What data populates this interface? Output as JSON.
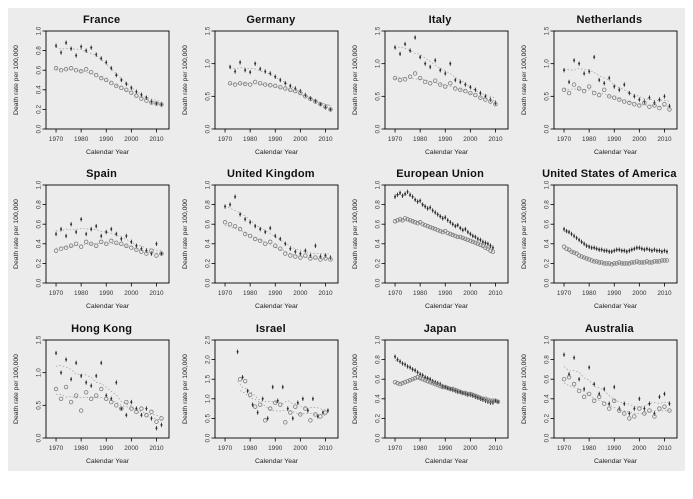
{
  "figure": {
    "background_color": "#ececec",
    "page_color": "#ffffff",
    "xlabel": "Calendar Year",
    "ylabel": "Death rate per 100,000",
    "x_ticks": [
      1970,
      1980,
      1990,
      2000,
      2010
    ],
    "x_range": [
      1966,
      2015
    ],
    "marker_dark_color": "#2a2a2a",
    "marker_open_color": "#7d7d7d",
    "trend_color": "#9a9a9a"
  },
  "chart_data": [
    {
      "type": "scatter",
      "title": "France",
      "xlabel": "Calendar Year",
      "ylabel": "Death rate per 100,000",
      "ylim": [
        0,
        1.0
      ],
      "yticks": [
        0.0,
        0.2,
        0.4,
        0.6,
        0.8,
        1.0
      ],
      "series": [
        {
          "name": "series1",
          "marker": "dot-errorbar",
          "x_start": 1970,
          "x_step": 2,
          "y": [
            0.85,
            0.78,
            0.88,
            0.82,
            0.75,
            0.84,
            0.8,
            0.83,
            0.76,
            0.72,
            0.68,
            0.62,
            0.55,
            0.5,
            0.46,
            0.42,
            0.38,
            0.35,
            0.32,
            0.28,
            0.26,
            0.25
          ]
        },
        {
          "name": "series2",
          "marker": "open-circle",
          "x_start": 1970,
          "x_step": 2,
          "y": [
            0.62,
            0.6,
            0.61,
            0.62,
            0.6,
            0.59,
            0.61,
            0.58,
            0.55,
            0.52,
            0.5,
            0.47,
            0.44,
            0.42,
            0.4,
            0.37,
            0.34,
            0.31,
            0.29,
            0.27,
            0.26,
            0.25
          ]
        }
      ]
    },
    {
      "type": "scatter",
      "title": "Germany",
      "xlabel": "Calendar Year",
      "ylabel": "Death rate per 100,000",
      "ylim": [
        0,
        1.5
      ],
      "yticks": [
        0.0,
        0.5,
        1.0,
        1.5
      ],
      "series": [
        {
          "name": "series1",
          "marker": "dot-errorbar",
          "x_start": 1972,
          "x_step": 2,
          "y": [
            0.95,
            0.88,
            1.02,
            0.9,
            0.87,
            1.0,
            0.92,
            0.88,
            0.85,
            0.8,
            0.75,
            0.7,
            0.66,
            0.62,
            0.58,
            0.52,
            0.47,
            0.43,
            0.38,
            0.33,
            0.3
          ]
        },
        {
          "name": "series2",
          "marker": "open-circle",
          "x_start": 1972,
          "x_step": 2,
          "y": [
            0.7,
            0.68,
            0.7,
            0.69,
            0.68,
            0.72,
            0.7,
            0.68,
            0.67,
            0.66,
            0.64,
            0.62,
            0.6,
            0.58,
            0.55,
            0.5,
            0.46,
            0.42,
            0.38,
            0.34,
            0.3
          ]
        }
      ]
    },
    {
      "type": "scatter",
      "title": "Italy",
      "xlabel": "Calendar Year",
      "ylabel": "Death rate per 100,000",
      "ylim": [
        0,
        1.5
      ],
      "yticks": [
        0.0,
        0.5,
        1.0,
        1.5
      ],
      "series": [
        {
          "name": "series1",
          "marker": "dot-errorbar",
          "x_start": 1970,
          "x_step": 2,
          "y": [
            1.25,
            1.15,
            1.3,
            1.2,
            1.4,
            1.1,
            1.0,
            0.95,
            1.05,
            0.9,
            0.85,
            1.0,
            0.75,
            0.72,
            0.68,
            0.64,
            0.6,
            0.55,
            0.5,
            0.45,
            0.4
          ]
        },
        {
          "name": "series2",
          "marker": "open-circle",
          "x_start": 1970,
          "x_step": 2,
          "y": [
            0.78,
            0.75,
            0.76,
            0.8,
            0.85,
            0.78,
            0.72,
            0.7,
            0.74,
            0.68,
            0.65,
            0.7,
            0.62,
            0.6,
            0.58,
            0.55,
            0.52,
            0.48,
            0.45,
            0.42,
            0.38
          ]
        }
      ]
    },
    {
      "type": "scatter",
      "title": "Netherlands",
      "xlabel": "Calendar Year",
      "ylabel": "Death rate per 100,000",
      "ylim": [
        0,
        1.5
      ],
      "yticks": [
        0.0,
        0.5,
        1.0,
        1.5
      ],
      "series": [
        {
          "name": "series1",
          "marker": "dot-errorbar",
          "x_start": 1970,
          "x_step": 2,
          "y": [
            0.9,
            0.72,
            1.05,
            1.0,
            0.85,
            0.88,
            1.1,
            0.75,
            0.7,
            0.78,
            0.65,
            0.6,
            0.68,
            0.55,
            0.5,
            0.45,
            0.42,
            0.48,
            0.4,
            0.45,
            0.5,
            0.35
          ]
        },
        {
          "name": "series2",
          "marker": "open-circle",
          "x_start": 1970,
          "x_step": 2,
          "y": [
            0.6,
            0.55,
            0.68,
            0.62,
            0.58,
            0.65,
            0.55,
            0.52,
            0.6,
            0.5,
            0.48,
            0.45,
            0.42,
            0.4,
            0.38,
            0.36,
            0.4,
            0.34,
            0.36,
            0.32,
            0.38,
            0.3
          ]
        }
      ]
    },
    {
      "type": "scatter",
      "title": "Spain",
      "xlabel": "Calendar Year",
      "ylabel": "Death rate per 100,000",
      "ylim": [
        0,
        1.0
      ],
      "yticks": [
        0.0,
        0.2,
        0.4,
        0.6,
        0.8,
        1.0
      ],
      "series": [
        {
          "name": "series1",
          "marker": "dot-errorbar",
          "x_start": 1970,
          "x_step": 2,
          "y": [
            0.5,
            0.55,
            0.48,
            0.6,
            0.52,
            0.65,
            0.5,
            0.55,
            0.58,
            0.48,
            0.52,
            0.55,
            0.5,
            0.45,
            0.48,
            0.42,
            0.38,
            0.35,
            0.33,
            0.3,
            0.4,
            0.3
          ]
        },
        {
          "name": "series2",
          "marker": "open-circle",
          "x_start": 1970,
          "x_step": 2,
          "y": [
            0.33,
            0.35,
            0.36,
            0.38,
            0.4,
            0.37,
            0.42,
            0.4,
            0.38,
            0.42,
            0.4,
            0.43,
            0.41,
            0.4,
            0.38,
            0.36,
            0.34,
            0.32,
            0.3,
            0.33,
            0.28,
            0.3
          ]
        }
      ]
    },
    {
      "type": "scatter",
      "title": "United Kingdom",
      "xlabel": "Calendar Year",
      "ylabel": "Death rate per 100,000",
      "ylim": [
        0,
        1.0
      ],
      "yticks": [
        0.0,
        0.2,
        0.4,
        0.6,
        0.8,
        1.0
      ],
      "series": [
        {
          "name": "series1",
          "marker": "dot-errorbar",
          "x_start": 1970,
          "x_step": 2,
          "y": [
            0.78,
            0.8,
            0.88,
            0.7,
            0.65,
            0.62,
            0.58,
            0.55,
            0.52,
            0.56,
            0.48,
            0.45,
            0.4,
            0.35,
            0.32,
            0.3,
            0.33,
            0.28,
            0.38,
            0.27,
            0.28,
            0.26
          ]
        },
        {
          "name": "series2",
          "marker": "open-circle",
          "x_start": 1970,
          "x_step": 2,
          "y": [
            0.62,
            0.6,
            0.58,
            0.55,
            0.5,
            0.48,
            0.45,
            0.43,
            0.4,
            0.42,
            0.38,
            0.35,
            0.3,
            0.28,
            0.27,
            0.26,
            0.28,
            0.25,
            0.26,
            0.24,
            0.25,
            0.24
          ]
        }
      ]
    },
    {
      "type": "scatter",
      "title": "European Union",
      "xlabel": "Calendar Year",
      "ylabel": "Death rate per 100,000",
      "ylim": [
        0,
        1.0
      ],
      "yticks": [
        0.0,
        0.2,
        0.4,
        0.6,
        0.8,
        1.0
      ],
      "series": [
        {
          "name": "series1",
          "marker": "dot-errorbar",
          "x_start": 1970,
          "x_step": 1,
          "y": [
            0.88,
            0.9,
            0.92,
            0.89,
            0.91,
            0.93,
            0.9,
            0.88,
            0.85,
            0.83,
            0.84,
            0.8,
            0.78,
            0.76,
            0.77,
            0.74,
            0.72,
            0.7,
            0.68,
            0.66,
            0.67,
            0.64,
            0.62,
            0.6,
            0.58,
            0.59,
            0.56,
            0.54,
            0.55,
            0.52,
            0.5,
            0.48,
            0.47,
            0.45,
            0.44,
            0.42,
            0.41,
            0.4,
            0.38,
            0.36
          ]
        },
        {
          "name": "series2",
          "marker": "open-circle",
          "x_start": 1970,
          "x_step": 1,
          "y": [
            0.63,
            0.64,
            0.65,
            0.64,
            0.66,
            0.65,
            0.64,
            0.63,
            0.62,
            0.61,
            0.62,
            0.6,
            0.59,
            0.58,
            0.57,
            0.56,
            0.55,
            0.54,
            0.53,
            0.52,
            0.53,
            0.51,
            0.5,
            0.49,
            0.48,
            0.47,
            0.47,
            0.46,
            0.45,
            0.44,
            0.43,
            0.42,
            0.41,
            0.4,
            0.39,
            0.38,
            0.36,
            0.35,
            0.33,
            0.32
          ]
        }
      ]
    },
    {
      "type": "scatter",
      "title": "United States of America",
      "xlabel": "Calendar Year",
      "ylabel": "Death rate per 100,000",
      "ylim": [
        0,
        1.0
      ],
      "yticks": [
        0.0,
        0.2,
        0.4,
        0.6,
        0.8,
        1.0
      ],
      "series": [
        {
          "name": "series1",
          "marker": "dot-errorbar",
          "x_start": 1970,
          "x_step": 1,
          "y": [
            0.55,
            0.53,
            0.52,
            0.5,
            0.48,
            0.46,
            0.44,
            0.42,
            0.4,
            0.38,
            0.37,
            0.36,
            0.36,
            0.35,
            0.34,
            0.34,
            0.33,
            0.33,
            0.32,
            0.32,
            0.33,
            0.34,
            0.34,
            0.33,
            0.33,
            0.32,
            0.33,
            0.34,
            0.35,
            0.36,
            0.36,
            0.35,
            0.34,
            0.35,
            0.34,
            0.33,
            0.34,
            0.33,
            0.33,
            0.32,
            0.33,
            0.32
          ]
        },
        {
          "name": "series2",
          "marker": "open-circle",
          "x_start": 1970,
          "x_step": 1,
          "y": [
            0.37,
            0.35,
            0.34,
            0.32,
            0.31,
            0.3,
            0.28,
            0.27,
            0.26,
            0.25,
            0.24,
            0.23,
            0.22,
            0.22,
            0.21,
            0.21,
            0.2,
            0.2,
            0.2,
            0.19,
            0.2,
            0.2,
            0.21,
            0.2,
            0.2,
            0.2,
            0.2,
            0.21,
            0.21,
            0.22,
            0.21,
            0.21,
            0.21,
            0.22,
            0.21,
            0.21,
            0.22,
            0.22,
            0.22,
            0.23,
            0.23,
            0.23
          ]
        }
      ]
    },
    {
      "type": "scatter",
      "title": "Hong Kong",
      "xlabel": "Calendar Year",
      "ylabel": "Death rate per 100,000",
      "ylim": [
        0,
        1.5
      ],
      "yticks": [
        0.0,
        0.5,
        1.0,
        1.5
      ],
      "series": [
        {
          "name": "series1",
          "marker": "dot-errorbar",
          "x_start": 1970,
          "x_step": 2,
          "y": [
            1.3,
            1.0,
            1.2,
            0.9,
            1.15,
            0.95,
            0.85,
            0.8,
            0.95,
            1.15,
            0.65,
            0.6,
            0.85,
            0.45,
            0.35,
            0.55,
            0.45,
            0.35,
            0.45,
            0.3,
            0.15,
            0.2
          ]
        },
        {
          "name": "series2",
          "marker": "open-circle",
          "x_start": 1970,
          "x_step": 2,
          "y": [
            0.75,
            0.6,
            0.78,
            0.55,
            0.65,
            0.42,
            0.7,
            0.6,
            0.65,
            0.75,
            0.6,
            0.55,
            0.5,
            0.45,
            0.55,
            0.45,
            0.4,
            0.45,
            0.35,
            0.4,
            0.25,
            0.3
          ]
        }
      ]
    },
    {
      "type": "scatter",
      "title": "Israel",
      "xlabel": "Calendar Year",
      "ylabel": "Death rate per 100,000",
      "ylim": [
        0,
        2.5
      ],
      "yticks": [
        0.0,
        0.5,
        1.0,
        1.5,
        2.0,
        2.5
      ],
      "series": [
        {
          "name": "series1",
          "marker": "dot-errorbar",
          "x_start": 1975,
          "x_step": 2,
          "y": [
            2.2,
            1.55,
            1.2,
            0.85,
            0.65,
            1.0,
            0.5,
            1.3,
            0.95,
            1.3,
            0.75,
            0.5,
            0.9,
            1.0,
            0.7,
            1.0,
            0.55,
            0.65,
            0.7
          ]
        },
        {
          "name": "series2",
          "marker": "open-circle",
          "x_start": 1976,
          "x_step": 2,
          "y": [
            1.5,
            1.45,
            1.1,
            0.8,
            0.85,
            0.45,
            0.75,
            0.9,
            0.85,
            0.4,
            0.65,
            0.8,
            0.6,
            0.75,
            0.45,
            0.6,
            0.55,
            0.65
          ]
        }
      ]
    },
    {
      "type": "scatter",
      "title": "Japan",
      "xlabel": "Calendar Year",
      "ylabel": "Death rate per 100,000",
      "ylim": [
        0,
        1.0
      ],
      "yticks": [
        0.0,
        0.2,
        0.4,
        0.6,
        0.8,
        1.0
      ],
      "series": [
        {
          "name": "series1",
          "marker": "dot-errorbar",
          "x_start": 1970,
          "x_step": 1,
          "y": [
            0.83,
            0.8,
            0.78,
            0.76,
            0.75,
            0.73,
            0.72,
            0.7,
            0.69,
            0.67,
            0.65,
            0.64,
            0.62,
            0.61,
            0.6,
            0.58,
            0.57,
            0.56,
            0.55,
            0.53,
            0.52,
            0.51,
            0.5,
            0.49,
            0.48,
            0.47,
            0.47,
            0.46,
            0.45,
            0.44,
            0.44,
            0.43,
            0.42,
            0.41,
            0.4,
            0.39,
            0.38,
            0.37,
            0.36,
            0.36,
            0.38,
            0.37
          ]
        },
        {
          "name": "series2",
          "marker": "open-circle",
          "x_start": 1970,
          "x_step": 1,
          "y": [
            0.57,
            0.56,
            0.55,
            0.56,
            0.57,
            0.58,
            0.59,
            0.6,
            0.61,
            0.62,
            0.61,
            0.6,
            0.59,
            0.58,
            0.57,
            0.56,
            0.55,
            0.54,
            0.53,
            0.52,
            0.52,
            0.51,
            0.5,
            0.5,
            0.49,
            0.48,
            0.47,
            0.46,
            0.46,
            0.45,
            0.45,
            0.44,
            0.43,
            0.42,
            0.41,
            0.4,
            0.4,
            0.39,
            0.38,
            0.38,
            0.38,
            0.37
          ]
        }
      ]
    },
    {
      "type": "scatter",
      "title": "Australia",
      "xlabel": "Calendar Year",
      "ylabel": "Death rate per 100,000",
      "ylim": [
        0,
        1.0
      ],
      "yticks": [
        0.0,
        0.2,
        0.4,
        0.6,
        0.8,
        1.0
      ],
      "series": [
        {
          "name": "series1",
          "marker": "dot-errorbar",
          "x_start": 1970,
          "x_step": 2,
          "y": [
            0.85,
            0.65,
            0.82,
            0.6,
            0.5,
            0.72,
            0.55,
            0.45,
            0.5,
            0.35,
            0.52,
            0.3,
            0.35,
            0.25,
            0.3,
            0.4,
            0.3,
            0.35,
            0.25,
            0.42,
            0.45,
            0.35
          ]
        },
        {
          "name": "series2",
          "marker": "open-circle",
          "x_start": 1970,
          "x_step": 2,
          "y": [
            0.6,
            0.62,
            0.55,
            0.48,
            0.42,
            0.45,
            0.38,
            0.42,
            0.35,
            0.3,
            0.38,
            0.28,
            0.25,
            0.2,
            0.22,
            0.3,
            0.25,
            0.28,
            0.22,
            0.3,
            0.32,
            0.28
          ]
        }
      ]
    }
  ]
}
